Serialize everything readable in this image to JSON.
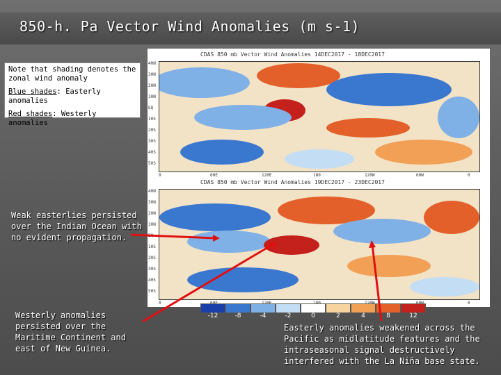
{
  "slide": {
    "title": "850-h. Pa Vector Wind Anomalies (m s-1)",
    "note_line1": "Note that shading denotes the",
    "note_line2": "zonal wind anomaly",
    "blue_label": "Blue shades",
    "blue_rest": ": Easterly anomalies",
    "red_label": "Red shades",
    "red_rest": ": Westerly anomalies",
    "annotation_indian": "Weak easterlies persisted over the Indian Ocean with no evident propagation.",
    "annotation_maritime": "Westerly anomalies persisted over the Maritime Continent and east of New Guinea.",
    "annotation_pacific": "Easterly anomalies weakened across the Pacific as midlatitude features and the intraseasonal signal destructively interfered with the La Niña base state."
  },
  "map_top": {
    "header": "CDAS 850 mb Vector Wind Anomalies  14DEC2017 - 18DEC2017"
  },
  "map_bottom": {
    "header": "CDAS 850 mb Vector Wind Anomalies  19DEC2017 - 23DEC2017"
  },
  "latitudes": [
    "40N",
    "30N",
    "20N",
    "10N",
    "EQ",
    "10S",
    "20S",
    "30S",
    "40S",
    "50S"
  ],
  "longitudes": [
    "0",
    "60E",
    "120E",
    "180",
    "120W",
    "60W",
    "0"
  ],
  "colorbar": {
    "labels": [
      "-12",
      "-8",
      "-4",
      "-2",
      "0",
      "2",
      "4",
      "8",
      "12"
    ],
    "colors": [
      "#1a3fa8",
      "#3a78d0",
      "#7fb0e6",
      "#c3ddf5",
      "#ffffff",
      "#f8d5a0",
      "#f3a057",
      "#e3602a",
      "#c4201c"
    ]
  }
}
